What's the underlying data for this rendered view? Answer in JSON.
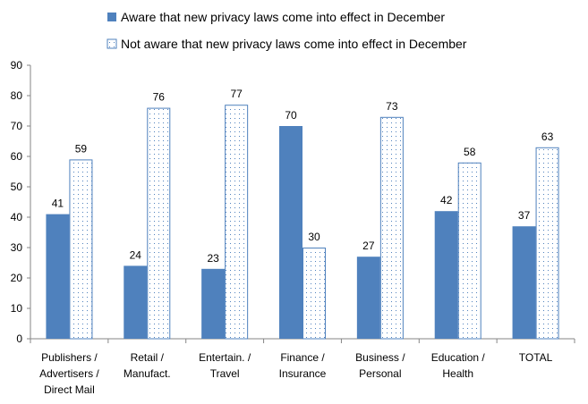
{
  "chart_data": {
    "type": "bar",
    "title": "",
    "xlabel": "",
    "ylabel": "",
    "ylim": [
      0,
      90
    ],
    "yticks": [
      0,
      10,
      20,
      30,
      40,
      50,
      60,
      70,
      80,
      90
    ],
    "grid": false,
    "legend_position": "top",
    "categories": [
      [
        "Publishers /",
        "Advertisers /",
        "Direct Mail"
      ],
      [
        "Retail /",
        "Manufact."
      ],
      [
        "Entertain. /",
        "Travel"
      ],
      [
        "Finance /",
        "Insurance"
      ],
      [
        "Business /",
        "Personal"
      ],
      [
        "Education /",
        "Health"
      ],
      [
        "TOTAL"
      ]
    ],
    "series": [
      {
        "name": "Aware that new privacy laws come into effect in December",
        "style": "solid",
        "color": "#4f81bd",
        "values": [
          41,
          24,
          23,
          70,
          27,
          42,
          37
        ]
      },
      {
        "name": "Not aware that new privacy laws come into effect in December",
        "style": "dotted",
        "color": "#4f81bd",
        "values": [
          59,
          76,
          77,
          30,
          73,
          58,
          63
        ]
      }
    ]
  }
}
